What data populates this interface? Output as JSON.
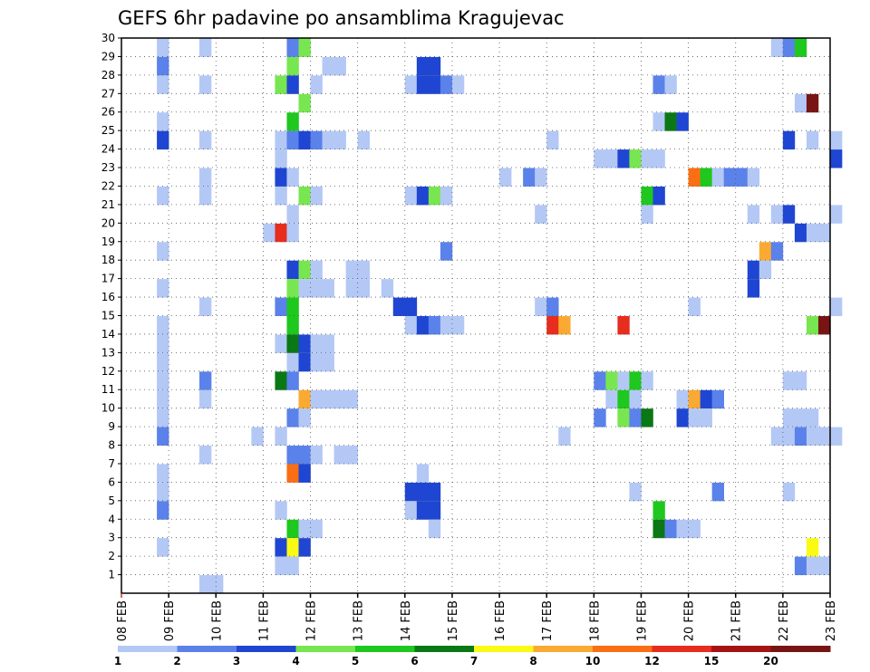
{
  "chart_data": {
    "type": "heatmap",
    "title": "GEFS 6hr padavine po ansamblima Kragujevac",
    "x_tick_labels": [
      "08 FEB",
      "09 FEB",
      "10 FEB",
      "11 FEB",
      "12 FEB",
      "13 FEB",
      "14 FEB",
      "15 FEB",
      "16 FEB",
      "17 FEB",
      "18 FEB",
      "19 FEB",
      "20 FEB",
      "21 FEB",
      "22 FEB",
      "23 FEB"
    ],
    "x_days_range": [
      0,
      15
    ],
    "y_members": [
      1,
      2,
      3,
      4,
      5,
      6,
      7,
      8,
      9,
      10,
      11,
      12,
      13,
      14,
      15,
      16,
      17,
      18,
      19,
      20,
      21,
      22,
      23,
      24,
      25,
      26,
      27,
      28,
      29,
      30
    ],
    "y_range": [
      0,
      30
    ],
    "grid": true,
    "colorbar": {
      "levels": [
        "1",
        "2",
        "3",
        "4",
        "5",
        "6",
        "7",
        "8",
        "10",
        "12",
        "15",
        "20"
      ],
      "colors": [
        "#b4c8f6",
        "#5a82ea",
        "#1e46d2",
        "#78e650",
        "#1ec81e",
        "#0a7814",
        "#fafa14",
        "#faaa32",
        "#fa6e14",
        "#e62d1e",
        "#a51414",
        "#781414"
      ]
    },
    "cells": [
      [
        0,
        30,
        0.75,
        1
      ],
      [
        0,
        30,
        1.65,
        1
      ],
      [
        0,
        30,
        3.5,
        2
      ],
      [
        0,
        30,
        3.75,
        4
      ],
      [
        0,
        30,
        13.75,
        1
      ],
      [
        0,
        30,
        14,
        2
      ],
      [
        0,
        30,
        14.25,
        5
      ],
      [
        0,
        29,
        0.75,
        2
      ],
      [
        0,
        29,
        3.5,
        4
      ],
      [
        0,
        29,
        4.25,
        1
      ],
      [
        0,
        29,
        4.5,
        1
      ],
      [
        0,
        29,
        6.25,
        3
      ],
      [
        0,
        29,
        6.5,
        3
      ],
      [
        0,
        28,
        0.75,
        1
      ],
      [
        0,
        28,
        1.65,
        1
      ],
      [
        0,
        28,
        3.25,
        4
      ],
      [
        0,
        28,
        3.5,
        3
      ],
      [
        0,
        28,
        4,
        1
      ],
      [
        0,
        28,
        6,
        1
      ],
      [
        0,
        28,
        6.25,
        3
      ],
      [
        0,
        28,
        6.5,
        3
      ],
      [
        0,
        28,
        6.75,
        2
      ],
      [
        0,
        28,
        7,
        1
      ],
      [
        0,
        28,
        11.25,
        2
      ],
      [
        0,
        28,
        11.5,
        1
      ],
      [
        0,
        27,
        3.75,
        4
      ],
      [
        0,
        27,
        14.25,
        1
      ],
      [
        0,
        27,
        14.5,
        14
      ],
      [
        0,
        26,
        0.75,
        1
      ],
      [
        0,
        26,
        3.5,
        5
      ],
      [
        0,
        26,
        11.25,
        1
      ],
      [
        0,
        26,
        11.5,
        6
      ],
      [
        0,
        26,
        11.75,
        3
      ],
      [
        0,
        25,
        0.75,
        3
      ],
      [
        0,
        25,
        1.65,
        1
      ],
      [
        0,
        25,
        3.25,
        1
      ],
      [
        0,
        25,
        3.5,
        2
      ],
      [
        0,
        25,
        3.75,
        3
      ],
      [
        0,
        25,
        4,
        2
      ],
      [
        0,
        25,
        4.25,
        1
      ],
      [
        0,
        25,
        4.5,
        1
      ],
      [
        0,
        25,
        5,
        1
      ],
      [
        0,
        25,
        9,
        1
      ],
      [
        0,
        25,
        14,
        3
      ],
      [
        0,
        25,
        14.5,
        1
      ],
      [
        0,
        25,
        15,
        1
      ],
      [
        0,
        24,
        3.25,
        1
      ],
      [
        0,
        24,
        10,
        1
      ],
      [
        0,
        24,
        10.25,
        1
      ],
      [
        0,
        24,
        10.5,
        3
      ],
      [
        0,
        24,
        10.75,
        4
      ],
      [
        0,
        24,
        11,
        1
      ],
      [
        0,
        24,
        11.25,
        1
      ],
      [
        0,
        24,
        15,
        3
      ],
      [
        0,
        23,
        1.65,
        1
      ],
      [
        0,
        23,
        3.25,
        3
      ],
      [
        0,
        23,
        3.5,
        1
      ],
      [
        0,
        23,
        8,
        1
      ],
      [
        0,
        23,
        8.5,
        2
      ],
      [
        0,
        23,
        8.75,
        1
      ],
      [
        0,
        23,
        12,
        9
      ],
      [
        0,
        23,
        12.25,
        5
      ],
      [
        0,
        23,
        12.5,
        1
      ],
      [
        0,
        23,
        12.75,
        2
      ],
      [
        0,
        23,
        13,
        2
      ],
      [
        0,
        23,
        13.25,
        1
      ],
      [
        0,
        22,
        0.75,
        1
      ],
      [
        0,
        22,
        1.65,
        1
      ],
      [
        0,
        22,
        3.25,
        1
      ],
      [
        0,
        22,
        3.75,
        4
      ],
      [
        0,
        22,
        4,
        1
      ],
      [
        0,
        22,
        6,
        1
      ],
      [
        0,
        22,
        6.25,
        3
      ],
      [
        0,
        22,
        6.5,
        4
      ],
      [
        0,
        22,
        6.75,
        1
      ],
      [
        0,
        22,
        11,
        5
      ],
      [
        0,
        22,
        11.25,
        3
      ],
      [
        0,
        21,
        3.5,
        1
      ],
      [
        0,
        21,
        8.75,
        1
      ],
      [
        0,
        21,
        11,
        1
      ],
      [
        0,
        21,
        13.25,
        1
      ],
      [
        0,
        21,
        13.75,
        1
      ],
      [
        0,
        21,
        14,
        3
      ],
      [
        0,
        21,
        15,
        1
      ],
      [
        0,
        20,
        3,
        1
      ],
      [
        0,
        20,
        3.25,
        10
      ],
      [
        0,
        20,
        3.5,
        1
      ],
      [
        0,
        20,
        14.25,
        3
      ],
      [
        0,
        20,
        14.5,
        1
      ],
      [
        0,
        20,
        14.75,
        1
      ],
      [
        0,
        19,
        0.75,
        1
      ],
      [
        0,
        19,
        6.75,
        2
      ],
      [
        0,
        19,
        13.5,
        8
      ],
      [
        0,
        19,
        13.75,
        2
      ],
      [
        0,
        18,
        3.5,
        3
      ],
      [
        0,
        18,
        3.75,
        4
      ],
      [
        0,
        18,
        4,
        1
      ],
      [
        0,
        18,
        4.75,
        1
      ],
      [
        0,
        18,
        5,
        1
      ],
      [
        0,
        18,
        13.25,
        3
      ],
      [
        0,
        18,
        13.5,
        1
      ],
      [
        0,
        17,
        0.75,
        1
      ],
      [
        0,
        17,
        3.5,
        4
      ],
      [
        0,
        17,
        3.75,
        1
      ],
      [
        0,
        17,
        4,
        1
      ],
      [
        0,
        17,
        4.25,
        1
      ],
      [
        0,
        17,
        4.75,
        1
      ],
      [
        0,
        17,
        5,
        1
      ],
      [
        0,
        17,
        5.5,
        1
      ],
      [
        0,
        17,
        13.25,
        3
      ],
      [
        0,
        16,
        1.65,
        1
      ],
      [
        0,
        16,
        3.25,
        2
      ],
      [
        0,
        16,
        3.5,
        5
      ],
      [
        0,
        16,
        5.75,
        3
      ],
      [
        0,
        16,
        6,
        3
      ],
      [
        0,
        16,
        8.75,
        1
      ],
      [
        0,
        16,
        9,
        2
      ],
      [
        0,
        16,
        12,
        1
      ],
      [
        0,
        16,
        15,
        1
      ],
      [
        0,
        15,
        0.75,
        1
      ],
      [
        0,
        15,
        3.5,
        5
      ],
      [
        0,
        15,
        6,
        1
      ],
      [
        0,
        15,
        6.25,
        3
      ],
      [
        0,
        15,
        6.5,
        2
      ],
      [
        0,
        15,
        6.75,
        1
      ],
      [
        0,
        15,
        7,
        1
      ],
      [
        0,
        15,
        9,
        10
      ],
      [
        0,
        15,
        9.25,
        8
      ],
      [
        0,
        15,
        10.5,
        10
      ],
      [
        0,
        15,
        14.5,
        4
      ],
      [
        0,
        15,
        14.75,
        12
      ],
      [
        0,
        14,
        0.75,
        1
      ],
      [
        0,
        14,
        3.25,
        1
      ],
      [
        0,
        14,
        3.5,
        6
      ],
      [
        0,
        14,
        3.75,
        3
      ],
      [
        0,
        14,
        4,
        1
      ],
      [
        0,
        14,
        4.25,
        1
      ],
      [
        0,
        13,
        0.75,
        1
      ],
      [
        0,
        13,
        3.5,
        1
      ],
      [
        0,
        13,
        3.75,
        3
      ],
      [
        0,
        13,
        4,
        1
      ],
      [
        0,
        13,
        4.25,
        1
      ],
      [
        0,
        12,
        0.75,
        1
      ],
      [
        0,
        12,
        1.65,
        2
      ],
      [
        0,
        12,
        3.25,
        6
      ],
      [
        0,
        12,
        3.5,
        2
      ],
      [
        0,
        12,
        10,
        2
      ],
      [
        0,
        12,
        10.25,
        4
      ],
      [
        0,
        12,
        10.5,
        1
      ],
      [
        0,
        12,
        10.75,
        5
      ],
      [
        0,
        12,
        11,
        1
      ],
      [
        0,
        12,
        14,
        1
      ],
      [
        0,
        12,
        14.25,
        1
      ],
      [
        0,
        11,
        0.75,
        1
      ],
      [
        0,
        11,
        1.65,
        1
      ],
      [
        0,
        11,
        3.75,
        8
      ],
      [
        0,
        11,
        4,
        1
      ],
      [
        0,
        11,
        4.25,
        1
      ],
      [
        0,
        11,
        4.5,
        1
      ],
      [
        0,
        11,
        4.75,
        1
      ],
      [
        0,
        11,
        10.25,
        1
      ],
      [
        0,
        11,
        10.5,
        5
      ],
      [
        0,
        11,
        10.75,
        1
      ],
      [
        0,
        11,
        11.75,
        1
      ],
      [
        0,
        11,
        12,
        8
      ],
      [
        0,
        11,
        12.25,
        3
      ],
      [
        0,
        11,
        12.5,
        2
      ],
      [
        0,
        10,
        0.75,
        1
      ],
      [
        0,
        10,
        3.5,
        2
      ],
      [
        0,
        10,
        3.75,
        1
      ],
      [
        0,
        10,
        10,
        2
      ],
      [
        0,
        10,
        10.5,
        4
      ],
      [
        0,
        10,
        10.75,
        2
      ],
      [
        0,
        10,
        11,
        6
      ],
      [
        0,
        10,
        11.75,
        3
      ],
      [
        0,
        10,
        12,
        1
      ],
      [
        0,
        10,
        12.25,
        1
      ],
      [
        0,
        10,
        14,
        1
      ],
      [
        0,
        10,
        14.25,
        1
      ],
      [
        0,
        10,
        14.5,
        1
      ],
      [
        0,
        9,
        0.75,
        2
      ],
      [
        0,
        9,
        2.75,
        1
      ],
      [
        0,
        9,
        3.25,
        1
      ],
      [
        0,
        9,
        9.25,
        1
      ],
      [
        0,
        9,
        13.75,
        1
      ],
      [
        0,
        9,
        14,
        1
      ],
      [
        0,
        9,
        14.25,
        2
      ],
      [
        0,
        9,
        14.5,
        1
      ],
      [
        0,
        9,
        14.75,
        1
      ],
      [
        0,
        9,
        15,
        1
      ],
      [
        0,
        8,
        1.65,
        1
      ],
      [
        0,
        8,
        3.5,
        2
      ],
      [
        0,
        8,
        3.75,
        2
      ],
      [
        0,
        8,
        4,
        1
      ],
      [
        0,
        8,
        4.5,
        1
      ],
      [
        0,
        8,
        4.75,
        1
      ],
      [
        0,
        7,
        0.75,
        1
      ],
      [
        0,
        7,
        3.5,
        9
      ],
      [
        0,
        7,
        3.75,
        3
      ],
      [
        0,
        7,
        6.25,
        1
      ],
      [
        0,
        6,
        0.75,
        1
      ],
      [
        0,
        6,
        6.0,
        3
      ],
      [
        0,
        6,
        6.25,
        3
      ],
      [
        0,
        6,
        6.5,
        3
      ],
      [
        0,
        6,
        10.75,
        1
      ],
      [
        0,
        6,
        12.5,
        2
      ],
      [
        0,
        6,
        14,
        1
      ],
      [
        0,
        5,
        0.75,
        2
      ],
      [
        0,
        5,
        3.25,
        1
      ],
      [
        0,
        5,
        6,
        1
      ],
      [
        0,
        5,
        6.25,
        3
      ],
      [
        0,
        5,
        6.5,
        3
      ],
      [
        0,
        5,
        11.25,
        5
      ],
      [
        0,
        4,
        3.5,
        5
      ],
      [
        0,
        4,
        3.75,
        1
      ],
      [
        0,
        4,
        4,
        1
      ],
      [
        0,
        4,
        6.5,
        1
      ],
      [
        0,
        4,
        11.25,
        6
      ],
      [
        0,
        4,
        11.5,
        2
      ],
      [
        0,
        4,
        11.75,
        1
      ],
      [
        0,
        4,
        12,
        1
      ],
      [
        0,
        3,
        0.75,
        1
      ],
      [
        0,
        3,
        3.25,
        3
      ],
      [
        0,
        3,
        3.5,
        7
      ],
      [
        0,
        3,
        3.75,
        3
      ],
      [
        0,
        3,
        14.5,
        7
      ],
      [
        0,
        2,
        3.25,
        1
      ],
      [
        0,
        2,
        3.5,
        1
      ],
      [
        0,
        2,
        14.25,
        2
      ],
      [
        0,
        2,
        14.5,
        1
      ],
      [
        0,
        2,
        14.75,
        1
      ],
      [
        0,
        1,
        1.65,
        1
      ],
      [
        0,
        1,
        1.9,
        1
      ]
    ]
  }
}
